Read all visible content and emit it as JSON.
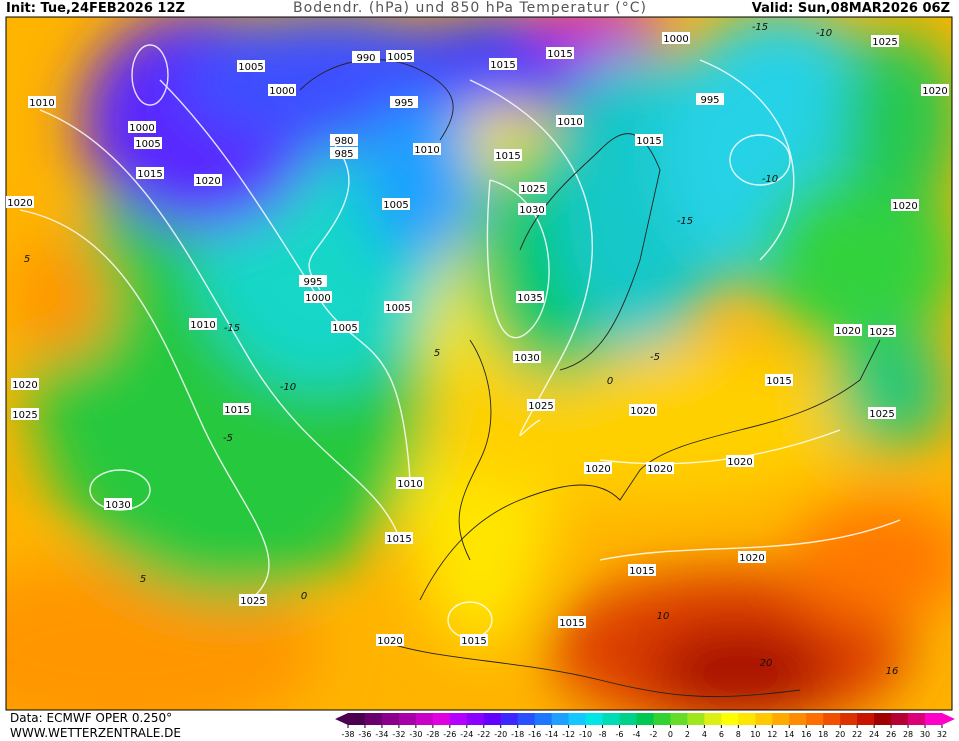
{
  "header": {
    "init": "Init: Tue,24FEB2026 12Z",
    "title": "Bodendr. (hPa) und 850 hPa Temperatur (°C)",
    "valid": "Valid: Sun,08MAR2026 06Z"
  },
  "footer": {
    "data": "Data: ECMWF OPER 0.250°",
    "site": "WWW.WETTERZENTRALE.DE"
  },
  "colorbar": {
    "ticks": [
      -38,
      -36,
      -34,
      -32,
      -30,
      -28,
      -26,
      -24,
      -22,
      -20,
      -18,
      -16,
      -14,
      -12,
      -10,
      -8,
      -6,
      -4,
      -2,
      0,
      2,
      4,
      6,
      8,
      10,
      12,
      14,
      16,
      18,
      20,
      22,
      24,
      26,
      28,
      30,
      32
    ],
    "colors": [
      "#4b0050",
      "#6a006e",
      "#8a008a",
      "#a800a8",
      "#c800c8",
      "#e000e0",
      "#b400ff",
      "#8c00ff",
      "#6400ff",
      "#3c28ff",
      "#2850ff",
      "#1e78ff",
      "#1ea0ff",
      "#14c8ff",
      "#00e6e6",
      "#00dcb4",
      "#00d28c",
      "#00c850",
      "#32d232",
      "#64dc28",
      "#a0e61e",
      "#dcf014",
      "#ffff00",
      "#ffe600",
      "#ffc800",
      "#ffaa00",
      "#ff8c00",
      "#ff6e00",
      "#f05000",
      "#dc3200",
      "#c81400",
      "#a00000",
      "#b40032",
      "#dc0078",
      "#ff00c8"
    ]
  },
  "isobar_labels": [
    1005,
    1000,
    995,
    990,
    1005,
    1010,
    1000,
    1005,
    1015,
    1020,
    1020,
    980,
    985,
    1010,
    1015,
    1025,
    1030,
    1005,
    995,
    1000,
    1010,
    1005,
    1005,
    1035,
    1030,
    1025,
    1015,
    1020,
    1025,
    1030,
    1010,
    1015,
    1025,
    1020,
    1015,
    1015,
    1015,
    1020,
    1020,
    1020,
    1020,
    1020,
    1015,
    1020,
    1025,
    1025,
    1020,
    1020,
    1025,
    1000,
    995,
    1015,
    1010,
    1015,
    1015
  ],
  "temperature_labels": [
    -10,
    -15,
    -10,
    -15,
    5,
    -15,
    -10,
    -5,
    0,
    5,
    10,
    16,
    20,
    5,
    -5,
    0
  ]
}
